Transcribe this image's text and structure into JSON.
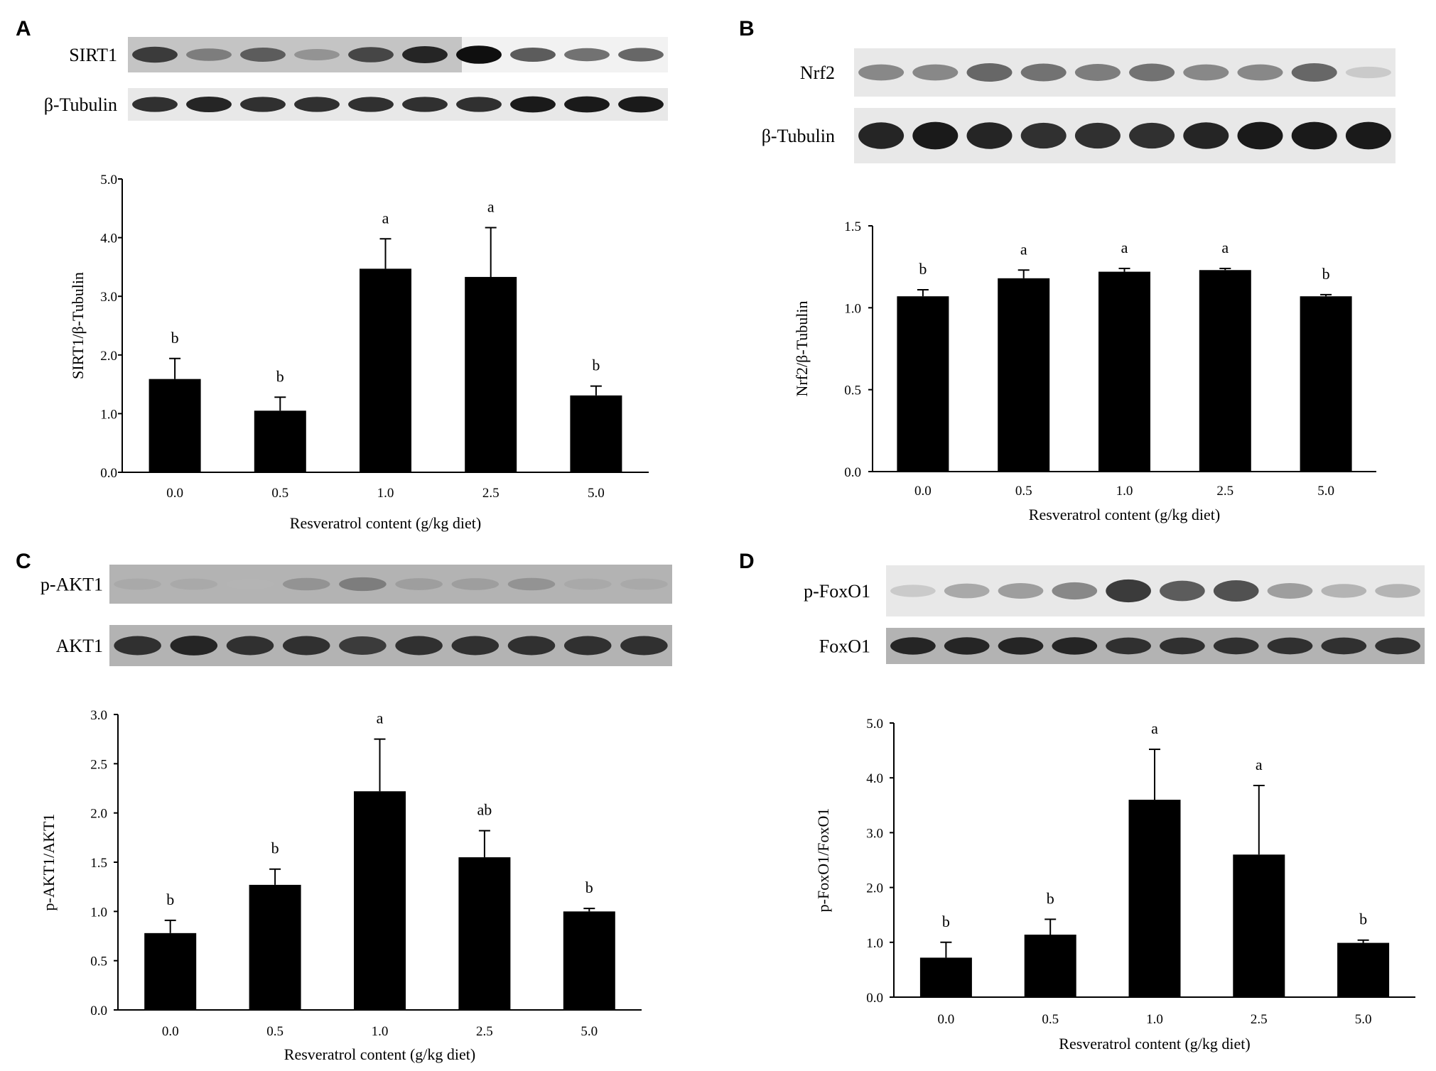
{
  "figure": {
    "panels": [
      {
        "letter": "A",
        "blot": {
          "target_label": "SIRT1",
          "loading_label": "β-Tubulin",
          "target_style": "dark",
          "loading_style": "light"
        },
        "chart": {
          "ylabel": "SIRT1/β-Tubulin",
          "xlabel": "Resveratrol content (g/kg diet)",
          "ytick_format": 1
        }
      },
      {
        "letter": "B",
        "blot": {
          "target_label": "Nrf2",
          "loading_label": "β-Tubulin",
          "target_style": "light",
          "loading_style": "light"
        },
        "chart": {
          "ylabel": "Nrf2/β-Tubulin",
          "xlabel": "Resveratrol content (g/kg diet)",
          "ytick_format": 1
        }
      },
      {
        "letter": "C",
        "blot": {
          "target_label": "p-AKT1",
          "loading_label": "AKT1",
          "target_style": "gray",
          "loading_style": "gray"
        },
        "chart": {
          "ylabel": "p-AKT1/AKT1",
          "xlabel": "Resveratrol content (g/kg diet)",
          "ytick_format": 1
        }
      },
      {
        "letter": "D",
        "blot": {
          "target_label": "p-FoxO1",
          "loading_label": "FoxO1",
          "target_style": "light",
          "loading_style": "gray"
        },
        "chart": {
          "ylabel": "p-FoxO1/FoxO1",
          "xlabel": "Resveratrol content (g/kg diet)",
          "ytick_format": 1
        }
      }
    ]
  },
  "colors": {
    "bar": "#000000",
    "axis": "#000000",
    "text": "#000000",
    "blot_band": "#1a1a1a"
  },
  "chart_data": [
    {
      "type": "bar",
      "panel": "A",
      "categories": [
        "0.0",
        "0.5",
        "1.0",
        "2.5",
        "5.0"
      ],
      "values": [
        1.59,
        1.05,
        3.47,
        3.33,
        1.31
      ],
      "errors": [
        0.35,
        0.23,
        0.51,
        0.84,
        0.16
      ],
      "significance": [
        "b",
        "b",
        "a",
        "a",
        "b"
      ],
      "ylim": [
        0,
        5.0
      ],
      "yticks": [
        0,
        1,
        2,
        3,
        4,
        5
      ],
      "ylabel": "SIRT1/β-Tubulin",
      "xlabel": "Resveratrol content (g/kg diet)",
      "blot_intensity": {
        "target": [
          0.8,
          0.5,
          0.65,
          0.4,
          0.75,
          0.9,
          1.0,
          0.65,
          0.55,
          0.6
        ],
        "loading": [
          0.85,
          0.9,
          0.85,
          0.85,
          0.85,
          0.85,
          0.85,
          0.95,
          0.95,
          0.95
        ]
      }
    },
    {
      "type": "bar",
      "panel": "B",
      "categories": [
        "0.0",
        "0.5",
        "1.0",
        "2.5",
        "5.0"
      ],
      "values": [
        1.07,
        1.18,
        1.22,
        1.23,
        1.07
      ],
      "errors": [
        0.04,
        0.05,
        0.02,
        0.01,
        0.01
      ],
      "significance": [
        "b",
        "a",
        "a",
        "a",
        "b"
      ],
      "ylim": [
        0,
        1.5
      ],
      "yticks": [
        0,
        0.5,
        1.0,
        1.5
      ],
      "ylabel": "Nrf2/β-Tubulin",
      "xlabel": "Resveratrol content (g/kg diet)",
      "blot_intensity": {
        "target": [
          0.45,
          0.45,
          0.6,
          0.55,
          0.5,
          0.55,
          0.45,
          0.45,
          0.6,
          0.15
        ],
        "loading": [
          0.9,
          0.95,
          0.9,
          0.85,
          0.85,
          0.85,
          0.9,
          0.95,
          0.95,
          0.95
        ]
      }
    },
    {
      "type": "bar",
      "panel": "C",
      "categories": [
        "0.0",
        "0.5",
        "1.0",
        "2.5",
        "5.0"
      ],
      "values": [
        0.78,
        1.27,
        2.22,
        1.55,
        1.0
      ],
      "errors": [
        0.13,
        0.16,
        0.53,
        0.27,
        0.03
      ],
      "significance": [
        "b",
        "b",
        "a",
        "ab",
        "b"
      ],
      "ylim": [
        0,
        3.0
      ],
      "yticks": [
        0,
        0.5,
        1.0,
        1.5,
        2.0,
        2.5,
        3.0
      ],
      "ylabel": "p-AKT1/AKT1",
      "xlabel": "Resveratrol content (g/kg diet)",
      "blot_intensity": {
        "target": [
          0.3,
          0.3,
          0.25,
          0.4,
          0.5,
          0.35,
          0.35,
          0.4,
          0.3,
          0.3
        ],
        "loading": [
          0.85,
          0.9,
          0.85,
          0.85,
          0.8,
          0.85,
          0.85,
          0.85,
          0.85,
          0.85
        ]
      }
    },
    {
      "type": "bar",
      "panel": "D",
      "categories": [
        "0.0",
        "0.5",
        "1.0",
        "2.5",
        "5.0"
      ],
      "values": [
        0.72,
        1.14,
        3.6,
        2.6,
        0.99
      ],
      "errors": [
        0.28,
        0.28,
        0.92,
        1.26,
        0.05
      ],
      "significance": [
        "b",
        "b",
        "a",
        "a",
        "b"
      ],
      "ylim": [
        0,
        5.0
      ],
      "yticks": [
        0,
        1,
        2,
        3,
        4,
        5
      ],
      "ylabel": "p-FoxO1/FoxO1",
      "xlabel": "Resveratrol content (g/kg diet)",
      "blot_intensity": {
        "target": [
          0.15,
          0.3,
          0.35,
          0.45,
          0.8,
          0.65,
          0.7,
          0.35,
          0.25,
          0.25
        ],
        "loading": [
          0.9,
          0.9,
          0.9,
          0.9,
          0.85,
          0.85,
          0.85,
          0.85,
          0.85,
          0.85
        ]
      }
    }
  ]
}
